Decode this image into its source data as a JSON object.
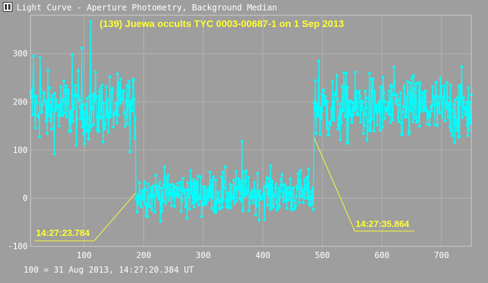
{
  "window": {
    "title": "Light Curve - Aperture Photometry, Background Median",
    "icon": "light-curve-app-icon"
  },
  "footer": {
    "reference": "100 = 31 Aug 2013, 14:27:20.384 UT"
  },
  "colors": {
    "background": "#9e9e9e",
    "grid": "#b4b4b4",
    "data": "#00ffff",
    "annotation": "#ffff33",
    "text": "#ffffff"
  },
  "chart_data": {
    "type": "line",
    "title": "(139) Juewa occults TYC 0003-00687-1 on 1 Sep 2013",
    "xlabel": "",
    "ylabel": "",
    "xlim": [
      10,
      750
    ],
    "ylim": [
      -100,
      380
    ],
    "xticks": [
      100,
      200,
      300,
      400,
      500,
      600,
      700
    ],
    "yticks": [
      -100,
      0,
      100,
      200,
      300
    ],
    "grid": true,
    "markers": "circle",
    "segments": [
      {
        "range": [
          10,
          186
        ],
        "mean": 185,
        "sd": 38
      },
      {
        "range": [
          187,
          485
        ],
        "mean": 10,
        "sd": 24
      },
      {
        "range": [
          486,
          750
        ],
        "mean": 185,
        "sd": 38
      }
    ],
    "peaks": [
      {
        "x": 15,
        "y": 295
      },
      {
        "x": 26,
        "y": 292
      },
      {
        "x": 80,
        "y": 298
      },
      {
        "x": 96,
        "y": 312
      },
      {
        "x": 111,
        "y": 367
      },
      {
        "x": 365,
        "y": 118
      },
      {
        "x": 494,
        "y": 285
      }
    ],
    "annotations": [
      {
        "label": "14:27:23.784",
        "x": 186,
        "y": 10
      },
      {
        "label": "14:27:35.864",
        "x": 486,
        "y": 125
      }
    ]
  }
}
